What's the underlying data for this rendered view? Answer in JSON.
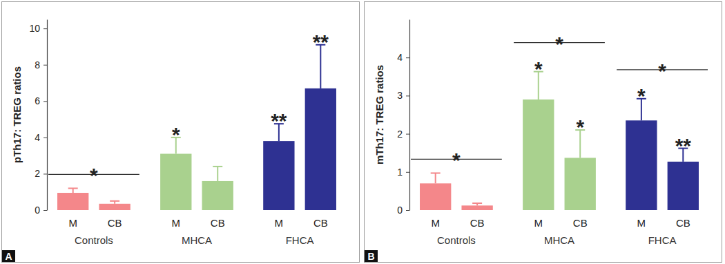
{
  "chart_data": [
    {
      "type": "bar",
      "panel": "A",
      "y_label": "pTh17: TREG ratios",
      "categories": [
        "M",
        "CB",
        "M",
        "CB",
        "M",
        "CB"
      ],
      "groups": [
        "Controls",
        "MHCA",
        "FHCA"
      ],
      "values": [
        0.95,
        0.35,
        3.1,
        1.6,
        3.8,
        6.7
      ],
      "errors": [
        0.25,
        0.15,
        0.9,
        0.8,
        0.95,
        2.4
      ],
      "colors": [
        "#f4878a",
        "#f4878a",
        "#a9d18e",
        "#a9d18e",
        "#2e3192",
        "#2e3192"
      ],
      "ylim": [
        0,
        10.5
      ],
      "yticks": [
        0,
        2,
        4,
        6,
        8,
        10
      ],
      "bar_annotations": [
        null,
        null,
        "*",
        null,
        "**",
        "**"
      ],
      "group_annotations": [
        "*",
        null,
        null
      ]
    },
    {
      "type": "bar",
      "panel": "B",
      "y_label": "mTh17: TREG ratios",
      "categories": [
        "M",
        "CB",
        "M",
        "CB",
        "M",
        "CB"
      ],
      "groups": [
        "Controls",
        "MHCA",
        "FHCA"
      ],
      "values": [
        0.7,
        0.12,
        2.9,
        1.37,
        2.35,
        1.27
      ],
      "errors": [
        0.27,
        0.06,
        0.73,
        0.73,
        0.57,
        0.35
      ],
      "colors": [
        "#f4878a",
        "#f4878a",
        "#a9d18e",
        "#a9d18e",
        "#2e3192",
        "#2e3192"
      ],
      "ylim": [
        0,
        5
      ],
      "yticks": [
        0,
        1,
        2,
        3,
        4
      ],
      "bar_annotations": [
        null,
        null,
        "*",
        "*",
        "*",
        "**"
      ],
      "group_annotations": [
        "*",
        "*",
        "*"
      ]
    }
  ]
}
